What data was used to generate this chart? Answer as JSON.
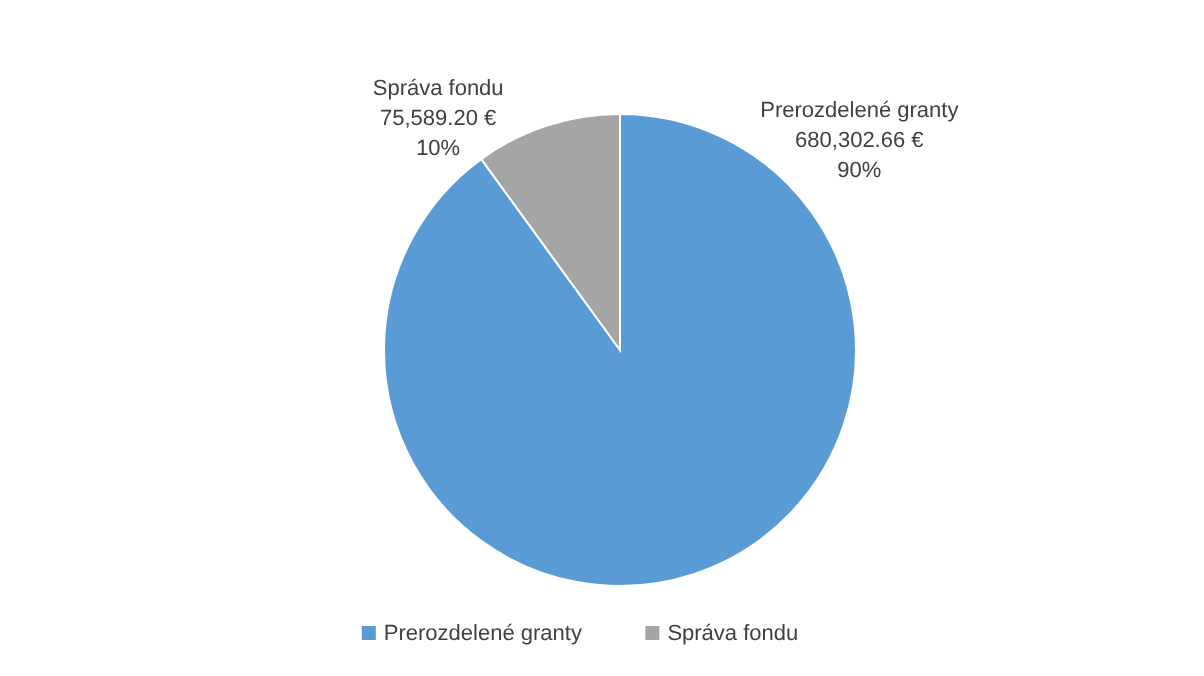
{
  "chart_data": {
    "type": "pie",
    "categories": [
      "Prerozdelené granty",
      "Správa fondu"
    ],
    "values": [
      680302.66,
      75589.2
    ],
    "colors": [
      "#5b9bd5",
      "#a5a5a5"
    ],
    "value_labels": [
      "680,302.66 €\n90%",
      "75,589.20 €\n10%"
    ],
    "legend": "bottom"
  }
}
